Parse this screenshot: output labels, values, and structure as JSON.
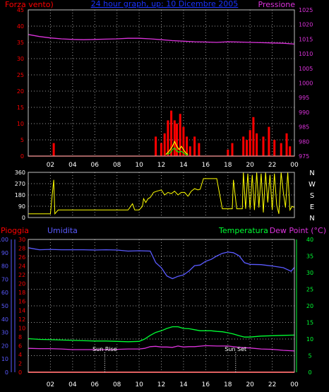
{
  "colors": {
    "background": "#000000",
    "frame": "#c0c0c0",
    "grid": "#9a9a9a",
    "wind": "#ff0000",
    "wind_gust": "#ffff00",
    "wind_avg": "#00ff00",
    "wind_low": "#cccccc",
    "pressure": "#dd33dd",
    "title": "#1a33ff",
    "direction": "#ffff00",
    "rain": "#ff0000",
    "humidity": "#5a5aff",
    "temperature": "#00ff33",
    "dew_point": "#dd33dd",
    "markers": "#ffffff"
  },
  "chart_data": [
    {
      "type": "bar",
      "title": "24 hour graph, up: 10 Dicembre 2005",
      "left_axis_label": "Forza vento)",
      "right_axis_label": "Pressione",
      "left_ticks": [
        "0",
        "5",
        "10",
        "15",
        "20",
        "25",
        "30",
        "35",
        "40",
        "45"
      ],
      "right_ticks": [
        "975",
        "980",
        "985",
        "990",
        "995",
        "1000",
        "1005",
        "1010",
        "1015",
        "1020",
        "1025"
      ],
      "x_ticks": [
        "02",
        "04",
        "06",
        "08",
        "10",
        "12",
        "14",
        "16",
        "18",
        "20",
        "22",
        "00"
      ],
      "xlim": [
        0,
        24
      ],
      "ylim_left": [
        0,
        45
      ],
      "ylim_right": [
        975,
        1025
      ],
      "grid": true,
      "series": [
        {
          "key": "pressure",
          "axis": "right",
          "x": [
            0,
            1,
            2,
            3,
            4,
            5,
            6,
            7,
            8,
            9,
            10,
            11,
            12,
            13,
            14,
            15,
            16,
            17,
            18,
            19,
            20,
            21,
            22,
            23,
            24
          ],
          "values": [
            1016.6,
            1015.9,
            1015.4,
            1015.1,
            1014.9,
            1014.8,
            1014.9,
            1015.0,
            1015.1,
            1015.3,
            1015.3,
            1015.1,
            1014.8,
            1014.5,
            1014.3,
            1014.1,
            1014.0,
            1013.9,
            1014.1,
            1014.0,
            1013.9,
            1013.8,
            1013.7,
            1013.6,
            1013.3
          ]
        },
        {
          "key": "wind",
          "axis": "left",
          "bars": [
            [
              2.3,
              4
            ],
            [
              11.5,
              6
            ],
            [
              12.0,
              4
            ],
            [
              12.3,
              7
            ],
            [
              12.6,
              11
            ],
            [
              12.9,
              14
            ],
            [
              13.2,
              11
            ],
            [
              13.4,
              10
            ],
            [
              13.7,
              13
            ],
            [
              14.0,
              9
            ],
            [
              14.3,
              6
            ],
            [
              14.6,
              3
            ],
            [
              15.0,
              6
            ],
            [
              15.4,
              4
            ],
            [
              18.0,
              2
            ],
            [
              18.4,
              4
            ],
            [
              19.4,
              6
            ],
            [
              19.7,
              5
            ],
            [
              20.0,
              8
            ],
            [
              20.3,
              12
            ],
            [
              20.6,
              7
            ],
            [
              21.2,
              6
            ],
            [
              21.7,
              9
            ],
            [
              22.2,
              5
            ],
            [
              22.8,
              4
            ],
            [
              23.3,
              7
            ],
            [
              23.6,
              3
            ]
          ]
        },
        {
          "key": "wind_gust",
          "axis": "left",
          "x": [
            12.4,
            12.7,
            13.0,
            13.2,
            13.4,
            13.6,
            13.8,
            14.0,
            14.2,
            14.4
          ],
          "values": [
            0.5,
            1.5,
            3,
            4.5,
            3,
            2,
            3,
            2,
            1,
            0.5
          ]
        },
        {
          "key": "wind_avg",
          "axis": "left",
          "x": [
            12.5,
            12.8,
            13.0,
            13.2,
            13.4,
            13.6,
            13.8,
            14.0,
            14.2,
            14.4
          ],
          "values": [
            0.5,
            1,
            2,
            2.5,
            1.5,
            1.2,
            1.5,
            1,
            0.5,
            0.3
          ]
        }
      ]
    },
    {
      "type": "line",
      "left_ticks": [
        "0",
        "90",
        "180",
        "270",
        "360"
      ],
      "right_labels": [
        "N",
        "W",
        "S",
        "E",
        "N"
      ],
      "xlim": [
        0,
        24
      ],
      "ylim": [
        0,
        360
      ],
      "grid": true,
      "x": [
        0.0,
        2.0,
        2.3,
        2.4,
        2.7,
        3.1,
        3.7,
        4.3,
        5.0,
        6.0,
        7.5,
        8.2,
        9.0,
        9.4,
        9.6,
        10.0,
        10.3,
        10.4,
        10.6,
        10.8,
        11.0,
        11.3,
        11.6,
        12.0,
        12.3,
        12.6,
        12.9,
        13.2,
        13.5,
        13.8,
        14.1,
        14.4,
        14.7,
        15.0,
        15.3,
        15.5,
        15.8,
        16.1,
        16.4,
        16.7,
        17.0,
        17.5,
        18.0,
        18.2,
        18.4,
        18.5,
        18.8,
        19.1,
        19.3,
        19.4,
        19.6,
        19.8,
        20.0,
        20.2,
        20.4,
        20.6,
        20.8,
        21.0,
        21.2,
        21.4,
        21.6,
        21.8,
        22.0,
        22.2,
        22.4,
        22.6,
        22.8,
        23.0,
        23.2,
        23.4,
        23.6,
        23.8,
        24.0
      ],
      "values": [
        30,
        30,
        300,
        30,
        60,
        60,
        60,
        60,
        60,
        60,
        60,
        60,
        60,
        110,
        60,
        60,
        90,
        150,
        120,
        150,
        160,
        200,
        210,
        220,
        180,
        200,
        190,
        210,
        180,
        200,
        200,
        170,
        210,
        230,
        220,
        225,
        310,
        310,
        310,
        310,
        310,
        70,
        70,
        70,
        70,
        300,
        70,
        70,
        70,
        360,
        70,
        350,
        70,
        340,
        60,
        360,
        80,
        350,
        40,
        360,
        120,
        340,
        60,
        350,
        100,
        30,
        360,
        200,
        80,
        360,
        60,
        90,
        80
      ]
    },
    {
      "type": "line",
      "left_axis_label": "Pioggia",
      "humidity_label": "Umidita",
      "temperature_label": "Temperatura",
      "dewpoint_label": "Dew Point (°C)",
      "rain_ticks": [
        "0",
        "10",
        "20",
        "30",
        "40",
        "50",
        "60",
        "70",
        "80",
        "90",
        "100"
      ],
      "humidity_ticks": [
        "0",
        "2",
        "4",
        "6",
        "8",
        "10",
        "12",
        "14",
        "16",
        "18",
        "20",
        "22",
        "24",
        "26",
        "28",
        "30"
      ],
      "right_ticks": [
        "0",
        "5",
        "10",
        "15",
        "20",
        "25",
        "30",
        "35",
        "40"
      ],
      "x_ticks": [
        "02",
        "04",
        "06",
        "08",
        "10",
        "12",
        "14",
        "16",
        "18",
        "20",
        "22",
        "00"
      ],
      "xlim": [
        0,
        24
      ],
      "rain_ylim": [
        0,
        100
      ],
      "temp_ylim": [
        0,
        40
      ],
      "grid": true,
      "sun_rise": {
        "label": "Sun Rise",
        "x": 6.9
      },
      "sun_set": {
        "label": "Sun Set",
        "x": 18.7
      },
      "series": [
        {
          "key": "rain",
          "x": [
            0,
            24
          ],
          "values": [
            0,
            0
          ]
        },
        {
          "key": "humidity",
          "x": [
            0,
            1,
            2,
            3,
            4,
            5,
            6,
            7,
            8,
            9,
            10,
            11,
            11.5,
            12,
            12.5,
            13,
            13.5,
            14,
            14.5,
            15,
            15.5,
            16,
            16.5,
            17,
            17.5,
            18,
            18.5,
            19,
            19.5,
            20,
            21,
            22,
            23,
            23.7,
            24
          ],
          "values": [
            37.5,
            36.9,
            37.0,
            36.9,
            36.9,
            36.9,
            36.8,
            36.9,
            36.8,
            36.5,
            36.6,
            36.5,
            33.0,
            31.5,
            29.0,
            28.2,
            28.9,
            29.3,
            30.5,
            32.1,
            32.3,
            33.4,
            34.0,
            35.0,
            35.8,
            36.2,
            36.0,
            35.1,
            33.0,
            32.5,
            32.4,
            32.0,
            31.5,
            30.4,
            31.6
          ]
        },
        {
          "key": "temperature",
          "x": [
            0,
            1,
            2,
            3,
            4,
            5,
            6,
            7,
            8,
            9,
            10,
            10.5,
            11,
            11.5,
            12,
            12.5,
            13,
            13.5,
            14,
            14.5,
            15,
            15.5,
            16,
            16.5,
            17,
            17.5,
            18,
            18.5,
            19,
            19.5,
            20,
            21,
            22,
            23,
            24
          ],
          "values": [
            10.1,
            9.9,
            9.8,
            9.7,
            9.6,
            9.5,
            9.4,
            9.4,
            9.3,
            9.2,
            9.3,
            10.0,
            11.1,
            12.0,
            12.5,
            13.2,
            13.7,
            13.7,
            13.2,
            13.1,
            12.8,
            12.5,
            12.5,
            12.5,
            12.3,
            12.2,
            11.9,
            11.5,
            11.0,
            10.6,
            10.6,
            10.9,
            11.0,
            11.1,
            11.2
          ]
        },
        {
          "key": "dew_point",
          "x": [
            0,
            1,
            2,
            3,
            4,
            5,
            6,
            7,
            8,
            9,
            10,
            10.5,
            11,
            11.5,
            12,
            12.5,
            13,
            13.5,
            14,
            14.5,
            15,
            16,
            17,
            18,
            19,
            20,
            21,
            22,
            23,
            24
          ],
          "values": [
            7.2,
            7.1,
            7.1,
            7.0,
            6.8,
            6.8,
            6.8,
            6.8,
            6.9,
            7.0,
            7.0,
            7.2,
            7.7,
            7.8,
            7.6,
            7.6,
            7.5,
            7.9,
            7.6,
            7.7,
            7.7,
            8.0,
            7.9,
            7.9,
            7.5,
            7.3,
            7.0,
            6.9,
            6.6,
            6.4
          ]
        }
      ]
    }
  ]
}
